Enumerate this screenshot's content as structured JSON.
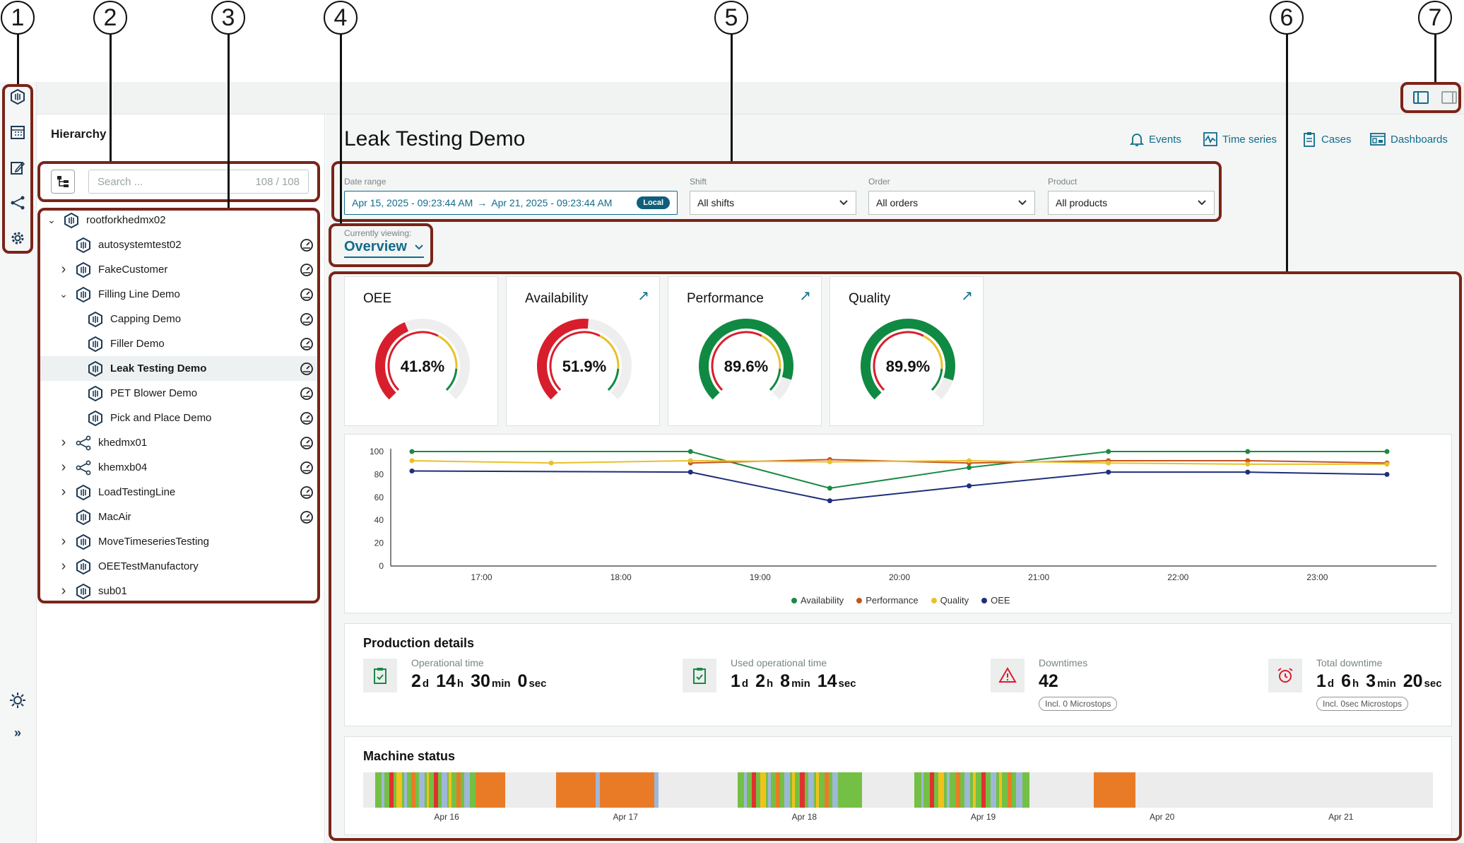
{
  "callouts": [
    "1",
    "2",
    "3",
    "4",
    "5",
    "6",
    "7"
  ],
  "rail": {
    "items": [
      "asset-icon",
      "calendar-icon",
      "edit-icon",
      "share-icon",
      "settings-icon"
    ],
    "theme_icon": "sun-icon",
    "expand_label": "»"
  },
  "hierarchy": {
    "title": "Hierarchy",
    "search_placeholder": "Search ...",
    "count": "108 / 108",
    "items": [
      {
        "label": "rootforkhedmx02",
        "level": 0,
        "chevron": "down",
        "icon": "asset",
        "gauge": false
      },
      {
        "label": "autosystemtest02",
        "level": 1,
        "chevron": "",
        "icon": "asset",
        "gauge": true
      },
      {
        "label": "FakeCustomer",
        "level": 1,
        "chevron": "right",
        "icon": "asset",
        "gauge": true
      },
      {
        "label": "Filling Line Demo",
        "level": 1,
        "chevron": "down",
        "icon": "asset",
        "gauge": true
      },
      {
        "label": "Capping Demo",
        "level": 2,
        "chevron": "",
        "icon": "asset",
        "gauge": true
      },
      {
        "label": "Filler Demo",
        "level": 2,
        "chevron": "",
        "icon": "asset",
        "gauge": true
      },
      {
        "label": "Leak Testing Demo",
        "level": 2,
        "chevron": "",
        "icon": "asset",
        "gauge": true,
        "selected": true
      },
      {
        "label": "PET Blower Demo",
        "level": 2,
        "chevron": "",
        "icon": "asset",
        "gauge": true
      },
      {
        "label": "Pick and Place Demo",
        "level": 2,
        "chevron": "",
        "icon": "asset",
        "gauge": true
      },
      {
        "label": "khedmx01",
        "level": 1,
        "chevron": "right",
        "icon": "share",
        "gauge": true
      },
      {
        "label": "khemxb04",
        "level": 1,
        "chevron": "right",
        "icon": "share",
        "gauge": true
      },
      {
        "label": "LoadTestingLine",
        "level": 1,
        "chevron": "right",
        "icon": "asset",
        "gauge": true
      },
      {
        "label": "MacAir",
        "level": 1,
        "chevron": "",
        "icon": "asset",
        "gauge": true
      },
      {
        "label": "MoveTimeseriesTesting",
        "level": 1,
        "chevron": "right",
        "icon": "asset",
        "gauge": false
      },
      {
        "label": "OEETestManufactory",
        "level": 1,
        "chevron": "right",
        "icon": "asset",
        "gauge": false
      },
      {
        "label": "sub01",
        "level": 1,
        "chevron": "right",
        "icon": "asset",
        "gauge": false
      }
    ]
  },
  "main": {
    "title": "Leak Testing Demo",
    "nav": [
      {
        "label": "Events",
        "icon": "bell-icon"
      },
      {
        "label": "Time series",
        "icon": "timeseries-icon"
      },
      {
        "label": "Cases",
        "icon": "clipboard-icon"
      },
      {
        "label": "Dashboards",
        "icon": "dashboard-icon"
      }
    ],
    "filters": {
      "date_label": "Date range",
      "date_from": "Apr 15, 2025 - 09:23:44 AM",
      "date_to": "Apr 21, 2025 - 09:23:44 AM",
      "date_badge": "Local",
      "shift_label": "Shift",
      "shift_value": "All shifts",
      "order_label": "Order",
      "order_value": "All orders",
      "product_label": "Product",
      "product_value": "All products"
    },
    "viewing_label": "Currently viewing:",
    "viewing_value": "Overview"
  },
  "kpis": [
    {
      "title": "OEE",
      "value": "41.8%",
      "fraction": 0.418,
      "color": "#d81e2c",
      "arrow": false
    },
    {
      "title": "Availability",
      "value": "51.9%",
      "fraction": 0.519,
      "color": "#d81e2c",
      "arrow": true
    },
    {
      "title": "Performance",
      "value": "89.6%",
      "fraction": 0.896,
      "color": "#108a42",
      "arrow": true
    },
    {
      "title": "Quality",
      "value": "89.9%",
      "fraction": 0.899,
      "color": "#108a42",
      "arrow": true
    }
  ],
  "chart_data": {
    "type": "line",
    "x": [
      "16:30",
      "17:30",
      "18:30",
      "19:30",
      "20:30",
      "21:30",
      "22:30",
      "23:30"
    ],
    "x_tick_labels": [
      "17:00",
      "18:00",
      "19:00",
      "20:00",
      "21:00",
      "22:00",
      "23:00"
    ],
    "ylim": [
      0,
      100
    ],
    "y_ticks": [
      0,
      20,
      40,
      60,
      80,
      100
    ],
    "legend_position": "bottom-center",
    "series": [
      {
        "name": "Availability",
        "color": "#1a8a43",
        "values": [
          100,
          null,
          100,
          68,
          86,
          100,
          100,
          100
        ]
      },
      {
        "name": "Performance",
        "color": "#c4561d",
        "values": [
          null,
          null,
          90,
          93,
          90,
          92,
          92,
          90
        ]
      },
      {
        "name": "Quality",
        "color": "#e8c12a",
        "values": [
          92,
          90,
          92,
          91,
          92,
          90,
          89,
          89
        ]
      },
      {
        "name": "OEE",
        "color": "#1f2f7a",
        "values": [
          83,
          null,
          82,
          57,
          70,
          82,
          82,
          80
        ]
      }
    ]
  },
  "production": {
    "title": "Production details",
    "items": [
      {
        "label": "Operational time",
        "parts": [
          [
            "2",
            "d"
          ],
          [
            "14",
            "h"
          ],
          [
            "30",
            "min"
          ],
          [
            "0",
            "sec"
          ]
        ],
        "icon": "clipboard-check-icon",
        "pill": ""
      },
      {
        "label": "Used operational time",
        "parts": [
          [
            "1",
            "d"
          ],
          [
            "2",
            "h"
          ],
          [
            "8",
            "min"
          ],
          [
            "14",
            "sec"
          ]
        ],
        "icon": "clipboard-check-icon",
        "pill": ""
      },
      {
        "label": "Downtimes",
        "parts": [
          [
            "42",
            ""
          ]
        ],
        "icon": "warning-icon",
        "pill": "Incl. 0 Microstops"
      },
      {
        "label": "Total downtime",
        "parts": [
          [
            "1",
            "d"
          ],
          [
            "6",
            "h"
          ],
          [
            "3",
            "min"
          ],
          [
            "20",
            "sec"
          ]
        ],
        "icon": "alarm-icon",
        "pill": "Incl. 0sec Microstops"
      }
    ]
  },
  "machine_status": {
    "title": "Machine status",
    "colors": {
      "running": "#74c044",
      "stopped": "#ea7b26",
      "idle": "#9fb7d9",
      "error": "#e0312f",
      "warn": "#f1c21b"
    },
    "ticks": [
      "Apr 16",
      "Apr 17",
      "Apr 18",
      "Apr 19",
      "Apr 20",
      "Apr 21"
    ]
  }
}
